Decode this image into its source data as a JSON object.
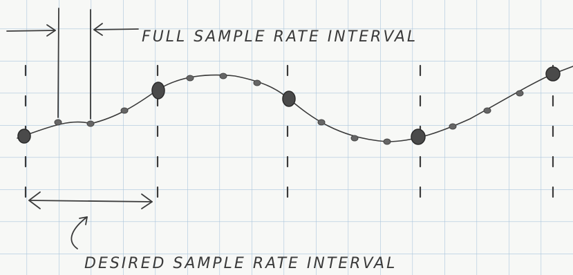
{
  "annotations": {
    "full_interval": "FULL SAMPLE RATE INTERVAL",
    "desired_interval": "DESIRED SAMPLE RATE INTERVAL"
  }
}
